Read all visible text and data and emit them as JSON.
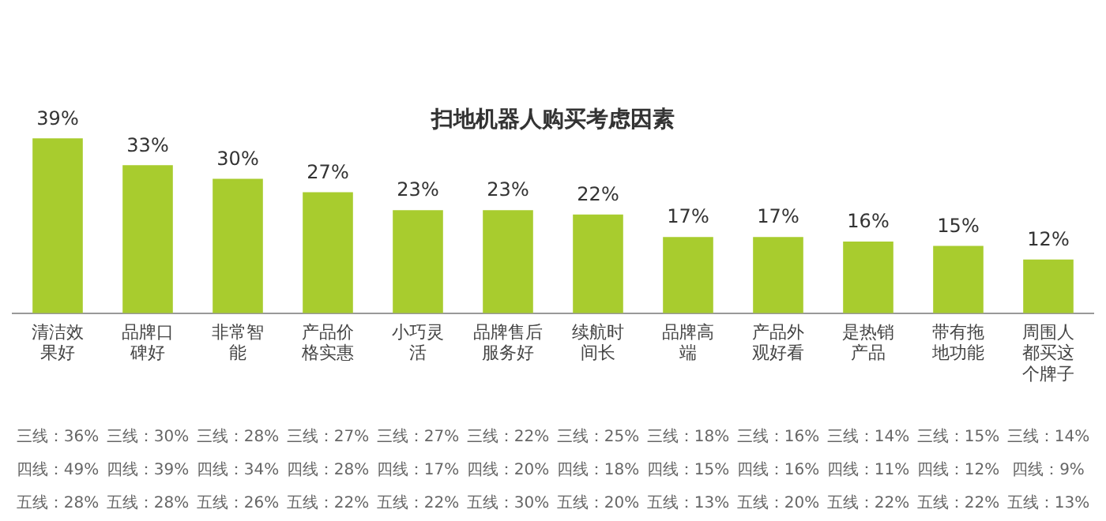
{
  "chart_data": {
    "type": "bar",
    "title": "扫地机器人购买考虑因素",
    "categories": [
      "清洁效果好",
      "品牌口碑好",
      "非常智能",
      "产品价格实惠",
      "小巧灵活",
      "品牌售后服务好",
      "续航时间长",
      "品牌高端",
      "产品外观好看",
      "是热销产品",
      "带有拖地功能",
      "周围人都买这个牌子"
    ],
    "values": [
      39,
      33,
      30,
      27,
      23,
      23,
      22,
      17,
      17,
      16,
      15,
      12
    ],
    "value_labels": [
      "39%",
      "33%",
      "30%",
      "27%",
      "23%",
      "23%",
      "22%",
      "17%",
      "17%",
      "16%",
      "15%",
      "12%"
    ],
    "color": "#a8cc2e",
    "grid": false,
    "legend": false,
    "annotations": [
      "三线：36%",
      "三线：30%",
      "三线：28%",
      "三线：27%",
      "三线：27%",
      "三线：22%",
      "三线：25%",
      "三线：18%",
      "三线：16%",
      "三线：14%",
      "三线：15%",
      "三线：14%",
      "四线：49%",
      "四线：39%",
      "四线：34%",
      "四线：28%",
      "四线：17%",
      "四线：20%",
      "四线：18%",
      "四线：15%",
      "四线：16%",
      "四线：11%",
      "四线：12%",
      "四线：9%",
      "五线：28%",
      "五线：28%",
      "五线：26%",
      "五线：22%",
      "五线：22%",
      "五线：30%",
      "五线：20%",
      "五线：13%",
      "五线：20%",
      "五线：22%",
      "五线：22%",
      "五线：13%"
    ]
  }
}
